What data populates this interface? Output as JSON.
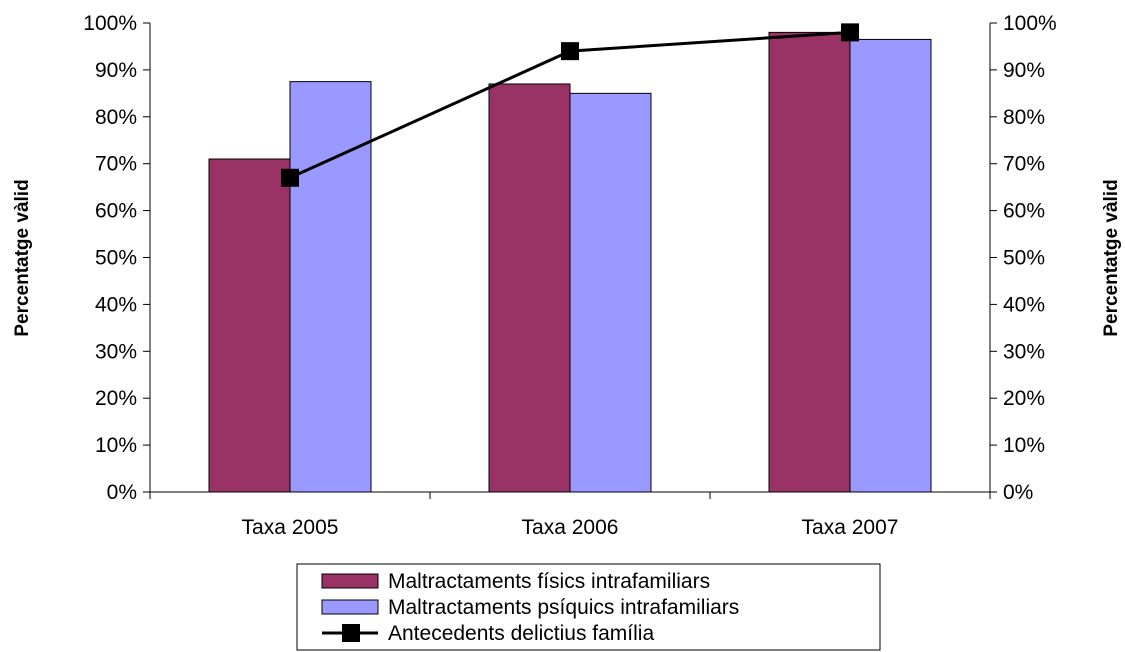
{
  "chart_data": {
    "type": "bar",
    "categories": [
      "Taxa 2005",
      "Taxa 2006",
      "Taxa 2007"
    ],
    "series": [
      {
        "name": "Maltractaments físics intrafamiliars",
        "kind": "bar",
        "color": "#993366",
        "values": [
          71,
          87,
          98
        ]
      },
      {
        "name": "Maltractaments psíquics intrafamiliars",
        "kind": "bar",
        "color": "#9999FF",
        "values": [
          87.5,
          85,
          96.5
        ]
      },
      {
        "name": "Antecedents delictius família",
        "kind": "line",
        "color": "#000000",
        "values": [
          67,
          94,
          98
        ]
      }
    ],
    "ylabel": "Percentatge vàlid",
    "ylabel_right": "Percentatge vàlid",
    "ylim": [
      0,
      100
    ],
    "yticks": [
      "0%",
      "10%",
      "20%",
      "30%",
      "40%",
      "50%",
      "60%",
      "70%",
      "80%",
      "90%",
      "100%"
    ],
    "legend_position": "bottom",
    "grid": false
  }
}
